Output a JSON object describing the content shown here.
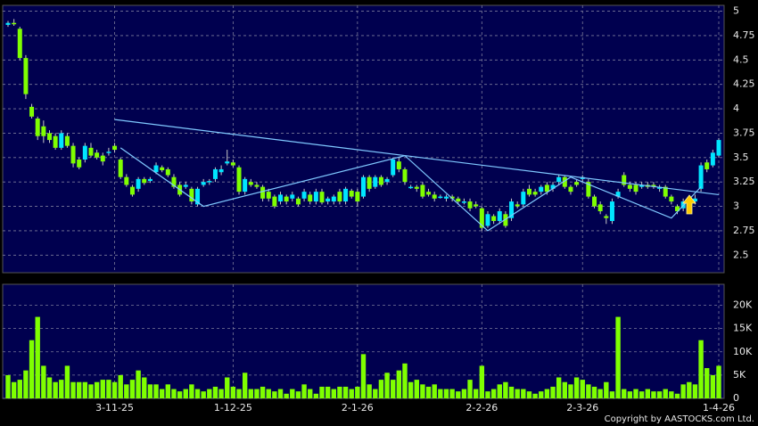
{
  "chart_data": [
    {
      "type": "candlestick",
      "open": [
        4.86,
        4.88,
        4.82,
        4.52,
        4.02,
        3.9,
        3.82,
        3.75,
        3.72,
        3.6,
        3.72,
        3.62,
        3.48,
        3.48,
        3.6,
        3.55,
        3.52,
        3.55,
        3.62,
        3.48,
        3.3,
        3.2,
        3.18,
        3.28,
        3.26,
        3.35,
        3.4,
        3.38,
        3.3,
        3.22,
        3.2,
        3.18,
        3.02,
        3.22,
        3.25,
        3.28,
        3.35,
        3.44,
        3.45,
        3.4,
        3.15,
        3.25,
        3.22,
        3.2,
        3.15,
        3.1,
        3.05,
        3.1,
        3.08,
        3.08,
        3.08,
        3.12,
        3.05,
        3.15,
        3.05,
        3.05,
        3.15,
        3.05,
        3.16,
        3.15,
        3.1,
        3.3,
        3.2,
        3.3,
        3.25,
        3.32,
        3.46,
        3.38,
        3.2,
        3.2,
        3.22,
        3.15,
        3.12,
        3.1,
        3.08,
        3.1,
        3.08,
        3.05,
        3.05,
        3.02,
        2.98,
        2.8,
        2.9,
        2.85,
        2.92,
        2.88,
        3.02,
        3.02,
        3.18,
        3.15,
        3.15,
        3.22,
        3.18,
        3.25,
        3.3,
        3.2,
        3.25,
        3.28,
        3.25,
        3.1,
        3.02,
        2.9,
        2.85,
        3.1,
        3.32,
        3.22,
        3.22,
        3.2,
        3.22,
        3.22,
        3.18,
        3.2,
        3.1,
        3.0,
        2.98,
        3.08,
        3.05,
        3.18,
        3.45,
        3.42,
        3.52
      ],
      "high": [
        4.9,
        4.92,
        4.84,
        4.55,
        4.05,
        3.92,
        3.88,
        3.78,
        3.75,
        3.78,
        3.75,
        3.65,
        3.5,
        3.65,
        3.65,
        3.58,
        3.55,
        3.6,
        3.65,
        3.5,
        3.33,
        3.22,
        3.3,
        3.3,
        3.3,
        3.45,
        3.42,
        3.4,
        3.33,
        3.25,
        3.25,
        3.2,
        3.2,
        3.28,
        3.28,
        3.4,
        3.42,
        3.58,
        3.48,
        3.42,
        3.3,
        3.28,
        3.25,
        3.22,
        3.18,
        3.12,
        3.15,
        3.12,
        3.15,
        3.1,
        3.18,
        3.15,
        3.18,
        3.18,
        3.1,
        3.12,
        3.18,
        3.2,
        3.18,
        3.18,
        3.32,
        3.32,
        3.32,
        3.32,
        3.3,
        3.5,
        3.5,
        3.4,
        3.22,
        3.22,
        3.25,
        3.18,
        3.15,
        3.12,
        3.12,
        3.12,
        3.1,
        3.08,
        3.08,
        3.05,
        3.0,
        2.95,
        2.92,
        2.98,
        2.95,
        3.08,
        3.05,
        3.18,
        3.22,
        3.18,
        3.22,
        3.25,
        3.25,
        3.32,
        3.32,
        3.22,
        3.28,
        3.32,
        3.28,
        3.12,
        3.05,
        2.92,
        3.08,
        3.18,
        3.35,
        3.25,
        3.25,
        3.25,
        3.25,
        3.25,
        3.22,
        3.22,
        3.12,
        3.02,
        3.08,
        3.1,
        3.12,
        3.45,
        3.48,
        3.58,
        3.7
      ],
      "low": [
        4.84,
        4.85,
        4.5,
        4.1,
        3.9,
        3.68,
        3.65,
        3.65,
        3.58,
        3.58,
        3.6,
        3.4,
        3.38,
        3.45,
        3.5,
        3.48,
        3.42,
        3.52,
        3.55,
        3.28,
        3.2,
        3.1,
        3.15,
        3.22,
        3.24,
        3.33,
        3.35,
        3.3,
        3.18,
        3.1,
        3.18,
        3.02,
        3.0,
        3.2,
        3.22,
        3.25,
        3.32,
        3.42,
        3.4,
        3.12,
        3.12,
        3.2,
        3.18,
        3.05,
        3.05,
        2.98,
        3.02,
        3.02,
        3.05,
        3.0,
        3.05,
        3.02,
        3.02,
        3.02,
        3.02,
        3.02,
        3.02,
        3.02,
        3.08,
        3.0,
        3.08,
        3.15,
        3.18,
        3.2,
        3.22,
        3.3,
        3.35,
        3.22,
        3.18,
        3.15,
        3.08,
        3.1,
        3.05,
        3.08,
        3.05,
        3.05,
        3.02,
        3.02,
        2.95,
        2.98,
        2.75,
        2.78,
        2.82,
        2.82,
        2.78,
        2.85,
        2.98,
        3.0,
        3.1,
        3.1,
        3.12,
        3.12,
        3.15,
        3.22,
        3.18,
        3.12,
        3.2,
        3.25,
        3.08,
        2.98,
        2.92,
        2.82,
        2.82,
        3.08,
        3.2,
        3.15,
        3.12,
        3.18,
        3.18,
        3.18,
        3.15,
        3.08,
        3.02,
        2.92,
        2.95,
        2.95,
        3.02,
        3.15,
        3.35,
        3.4,
        3.5
      ],
      "close": [
        4.88,
        4.87,
        4.52,
        4.15,
        3.92,
        3.72,
        3.72,
        3.68,
        3.6,
        3.75,
        3.62,
        3.44,
        3.4,
        3.62,
        3.52,
        3.5,
        3.46,
        3.56,
        3.58,
        3.3,
        3.22,
        3.12,
        3.28,
        3.24,
        3.28,
        3.42,
        3.37,
        3.32,
        3.2,
        3.12,
        3.22,
        3.05,
        3.18,
        3.25,
        3.26,
        3.38,
        3.38,
        3.46,
        3.42,
        3.15,
        3.28,
        3.22,
        3.2,
        3.08,
        3.08,
        3.0,
        3.12,
        3.05,
        3.12,
        3.02,
        3.15,
        3.05,
        3.15,
        3.04,
        3.08,
        3.1,
        3.05,
        3.18,
        3.1,
        3.05,
        3.3,
        3.18,
        3.3,
        3.22,
        3.28,
        3.48,
        3.38,
        3.25,
        3.2,
        3.18,
        3.1,
        3.12,
        3.08,
        3.1,
        3.1,
        3.08,
        3.05,
        3.05,
        2.98,
        3.0,
        2.78,
        2.92,
        2.85,
        2.95,
        2.8,
        3.05,
        3.0,
        3.15,
        3.12,
        3.12,
        3.2,
        3.15,
        3.22,
        3.3,
        3.2,
        3.15,
        3.22,
        3.3,
        3.1,
        3.0,
        2.95,
        2.88,
        3.05,
        3.15,
        3.22,
        3.18,
        3.15,
        3.22,
        3.2,
        3.2,
        3.2,
        3.1,
        3.05,
        2.95,
        3.05,
        2.98,
        3.08,
        3.42,
        3.38,
        3.55,
        3.68
      ],
      "up_color": "#00e5ff",
      "down_color": "#7fff00",
      "wick_color": "#c8c8c8",
      "ylim": [
        2.32,
        5.06
      ],
      "yticks": [
        2.5,
        2.75,
        3,
        3.25,
        3.5,
        3.75,
        4,
        4.25,
        4.5,
        4.75,
        5
      ],
      "grid": true,
      "trendlines": [
        {
          "color": "#7fc8ff",
          "points": [
            [
              18,
              3.89
            ],
            [
              120,
              3.12
            ]
          ]
        },
        {
          "color": "#7fc8ff",
          "points": [
            [
              19,
              3.6
            ],
            [
              33,
              3.0
            ],
            [
              67,
              3.52
            ],
            [
              81,
              2.75
            ],
            [
              95,
              3.3
            ],
            [
              112,
              2.88
            ],
            [
              117,
              3.2
            ]
          ]
        }
      ]
    },
    {
      "type": "bar",
      "categories": [
        null,
        null,
        null,
        null,
        null,
        null,
        null,
        null,
        null,
        null,
        null,
        null,
        null,
        null,
        null,
        null,
        null,
        null,
        "3-11-25",
        null,
        null,
        null,
        null,
        null,
        null,
        null,
        null,
        null,
        null,
        null,
        null,
        null,
        null,
        null,
        null,
        null,
        null,
        null,
        "1-12-25",
        null,
        null,
        null,
        null,
        null,
        null,
        null,
        null,
        null,
        null,
        null,
        null,
        null,
        null,
        null,
        null,
        null,
        null,
        null,
        null,
        "2-1-26",
        null,
        null,
        null,
        null,
        null,
        null,
        null,
        null,
        null,
        null,
        null,
        null,
        null,
        null,
        null,
        null,
        null,
        null,
        null,
        null,
        "2-2-26",
        null,
        null,
        null,
        null,
        null,
        null,
        null,
        null,
        null,
        null,
        null,
        null,
        null,
        null,
        null,
        null,
        "2-3-26",
        null,
        null,
        null,
        null,
        null,
        null,
        null,
        null,
        null,
        null,
        null,
        null,
        null,
        null,
        null,
        null,
        null,
        null,
        null,
        null,
        null,
        null,
        "1-4-26"
      ],
      "values": [
        5000,
        3500,
        4000,
        6000,
        12500,
        17500,
        7000,
        4500,
        3500,
        4000,
        7000,
        3500,
        3500,
        3500,
        3000,
        3500,
        4000,
        4000,
        3500,
        5000,
        3000,
        4000,
        6000,
        4500,
        3000,
        3000,
        2000,
        3000,
        2000,
        1500,
        2000,
        3000,
        2000,
        1500,
        2000,
        2500,
        2000,
        4500,
        2500,
        2000,
        5500,
        2000,
        2000,
        2500,
        2000,
        1500,
        2000,
        1000,
        2000,
        1500,
        3000,
        2000,
        1000,
        2500,
        2500,
        2000,
        2500,
        2500,
        2000,
        2500,
        9500,
        3000,
        2000,
        4000,
        5500,
        4000,
        6000,
        7500,
        3500,
        4000,
        3000,
        2500,
        3000,
        2000,
        2000,
        2000,
        1500,
        2000,
        4000,
        2000,
        7000,
        1500,
        2000,
        3000,
        3500,
        2500,
        2000,
        2000,
        1500,
        1000,
        1500,
        2000,
        2500,
        4500,
        3500,
        3000,
        4500,
        4000,
        3000,
        2500,
        2000,
        3500,
        1500,
        17500,
        2000,
        1500,
        2000,
        1500,
        2000,
        1500,
        1500,
        2000,
        1500,
        1000,
        3000,
        3500,
        3000,
        12500,
        6500,
        5000,
        7000
      ],
      "color": "#7fff00",
      "ylim": [
        0,
        24500
      ],
      "yticks": [
        0,
        {
          "value": 5000,
          "label": "5K"
        },
        {
          "value": 10000,
          "label": "10K"
        },
        {
          "value": 15000,
          "label": "15K"
        },
        {
          "value": 20000,
          "label": "20K"
        }
      ],
      "grid": true
    }
  ],
  "copyright": "Copyright by AASTOCKS.com Ltd."
}
